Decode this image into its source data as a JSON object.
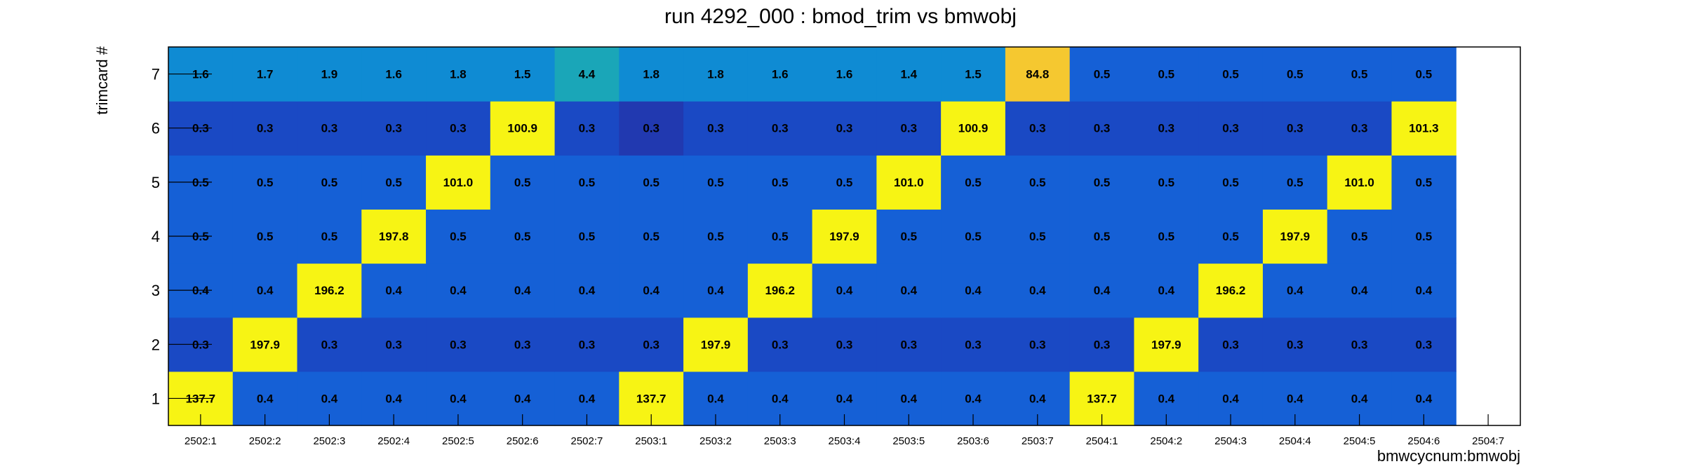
{
  "chart_data": {
    "type": "heatmap",
    "title": "run 4292_000 : bmod_trim vs bmwobj",
    "xlabel": "bmwcycnum:bmwobj",
    "ylabel": "trimcard #",
    "x_categories": [
      "2502:1",
      "2502:2",
      "2502:3",
      "2502:4",
      "2502:5",
      "2502:6",
      "2502:7",
      "2503:1",
      "2503:2",
      "2503:3",
      "2503:4",
      "2503:5",
      "2503:6",
      "2503:7",
      "2504:1",
      "2504:2",
      "2504:3",
      "2504:4",
      "2504:5",
      "2504:6",
      "2504:7"
    ],
    "y_categories": [
      "1",
      "2",
      "3",
      "4",
      "5",
      "6",
      "7"
    ],
    "values": [
      [
        "137.7",
        "0.4",
        "0.4",
        "0.4",
        "0.4",
        "0.4",
        "0.4",
        "137.7",
        "0.4",
        "0.4",
        "0.4",
        "0.4",
        "0.4",
        "0.4",
        "137.7",
        "0.4",
        "0.4",
        "0.4",
        "0.4",
        "0.4",
        null
      ],
      [
        "0.3",
        "197.9",
        "0.3",
        "0.3",
        "0.3",
        "0.3",
        "0.3",
        "0.3",
        "197.9",
        "0.3",
        "0.3",
        "0.3",
        "0.3",
        "0.3",
        "0.3",
        "197.9",
        "0.3",
        "0.3",
        "0.3",
        "0.3",
        null
      ],
      [
        "0.4",
        "0.4",
        "196.2",
        "0.4",
        "0.4",
        "0.4",
        "0.4",
        "0.4",
        "0.4",
        "196.2",
        "0.4",
        "0.4",
        "0.4",
        "0.4",
        "0.4",
        "0.4",
        "196.2",
        "0.4",
        "0.4",
        "0.4",
        null
      ],
      [
        "0.5",
        "0.5",
        "0.5",
        "197.8",
        "0.5",
        "0.5",
        "0.5",
        "0.5",
        "0.5",
        "0.5",
        "197.9",
        "0.5",
        "0.5",
        "0.5",
        "0.5",
        "0.5",
        "0.5",
        "197.9",
        "0.5",
        "0.5",
        null
      ],
      [
        "0.5",
        "0.5",
        "0.5",
        "0.5",
        "101.0",
        "0.5",
        "0.5",
        "0.5",
        "0.5",
        "0.5",
        "0.5",
        "101.0",
        "0.5",
        "0.5",
        "0.5",
        "0.5",
        "0.5",
        "0.5",
        "101.0",
        "0.5",
        null
      ],
      [
        "0.3",
        "0.3",
        "0.3",
        "0.3",
        "0.3",
        "100.9",
        "0.3",
        "0.3",
        "0.3",
        "0.3",
        "0.3",
        "0.3",
        "100.9",
        "0.3",
        "0.3",
        "0.3",
        "0.3",
        "0.3",
        "0.3",
        "101.3",
        null
      ],
      [
        "1.6",
        "1.7",
        "1.9",
        "1.6",
        "1.8",
        "1.5",
        "4.4",
        "1.8",
        "1.8",
        "1.6",
        "1.6",
        "1.4",
        "1.5",
        "84.8",
        "0.5",
        "0.5",
        "0.5",
        "0.5",
        "0.5",
        "0.5",
        null
      ]
    ],
    "grid": false,
    "legend": "none"
  },
  "colors": {
    "background": "#ffffff",
    "frame": "#000000",
    "low_blue": "#1560d6",
    "dark_blue": "#2139b0",
    "mid_blue": "#1a49c4",
    "light_blue": "#0f8bd3",
    "teal": "#1aa6b8",
    "orange": "#f5c830",
    "yellow": "#f7f414"
  }
}
